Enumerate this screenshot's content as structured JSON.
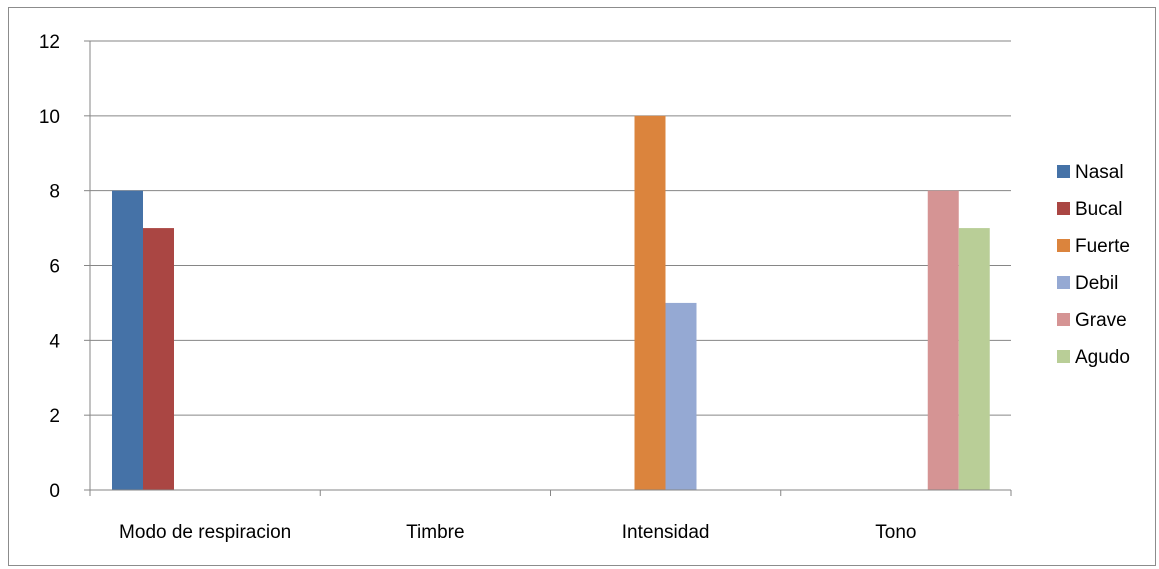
{
  "chart_data": {
    "type": "bar",
    "title": "",
    "xlabel": "",
    "ylabel": "",
    "ylim": [
      0,
      12
    ],
    "yticks": [
      0,
      2,
      4,
      6,
      8,
      10,
      12
    ],
    "grid": true,
    "legend_position": "right",
    "categories": [
      "Modo de respiracion",
      "Timbre",
      "Intensidad",
      "Tono"
    ],
    "series": [
      {
        "name": "Nasal",
        "color": "#4572A7",
        "values": [
          8,
          null,
          null,
          null
        ]
      },
      {
        "name": "Bucal",
        "color": "#AA4643",
        "values": [
          7,
          null,
          null,
          null
        ]
      },
      {
        "name": "Fuerte",
        "color": "#DB843D",
        "values": [
          null,
          null,
          10,
          null
        ]
      },
      {
        "name": "Debil",
        "color": "#95A9D3",
        "values": [
          null,
          null,
          5,
          null
        ]
      },
      {
        "name": "Grave",
        "color": "#D59494",
        "values": [
          null,
          null,
          null,
          8
        ]
      },
      {
        "name": "Agudo",
        "color": "#B9CE97",
        "values": [
          null,
          null,
          null,
          7
        ]
      }
    ]
  }
}
